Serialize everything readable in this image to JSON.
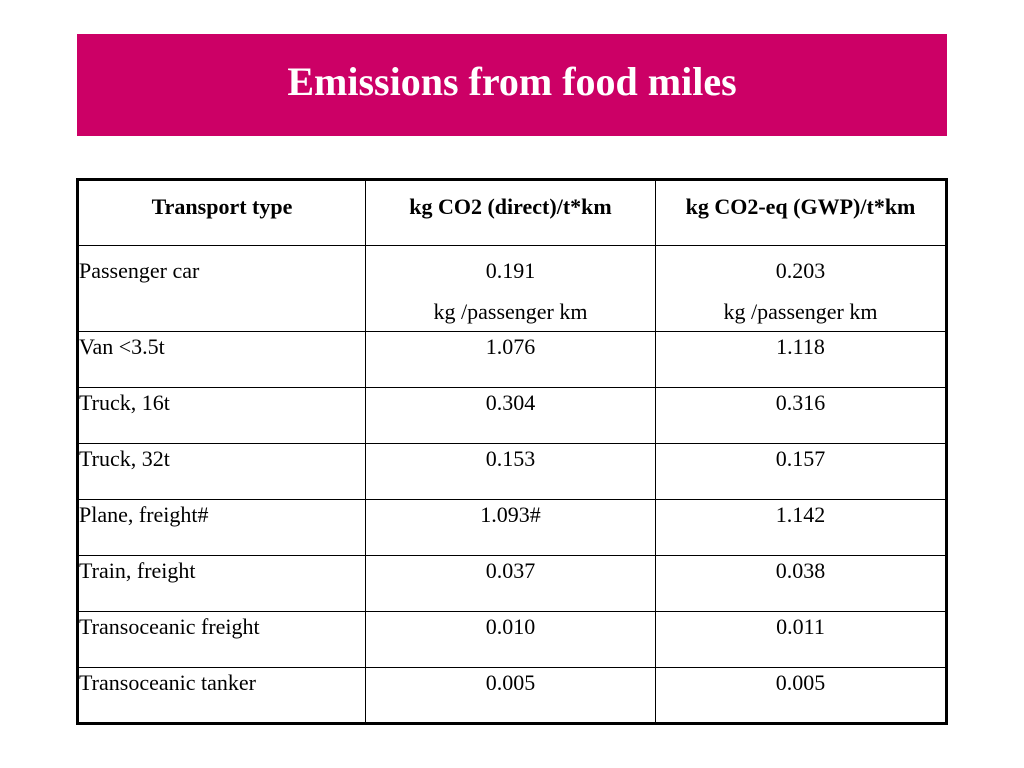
{
  "title": "Emissions from food miles",
  "colors": {
    "title_bar": "#cc0066",
    "title_text": "#ffffff"
  },
  "table": {
    "headers": [
      "Transport type",
      "kg CO2 (direct)/t*km",
      "kg CO2-eq (GWP)/t*km"
    ],
    "rows": [
      {
        "type": "Passenger car",
        "direct": "0.191",
        "direct_unit": "kg /passenger km",
        "gwp": "0.203",
        "gwp_unit": "kg /passenger km"
      },
      {
        "type": "Van <3.5t",
        "direct": "1.076",
        "gwp": "1.118"
      },
      {
        "type": "Truck, 16t",
        "direct": "0.304",
        "gwp": "0.316"
      },
      {
        "type": "Truck, 32t",
        "direct": "0.153",
        "gwp": "0.157"
      },
      {
        "type": "Plane, freight#",
        "direct": "1.093#",
        "gwp": "1.142"
      },
      {
        "type": "Train, freight",
        "direct": "0.037",
        "gwp": "0.038"
      },
      {
        "type": "Transoceanic freight",
        "direct": "0.010",
        "gwp": "0.011"
      },
      {
        "type": "Transoceanic tanker",
        "direct": "0.005",
        "gwp": "0.005"
      }
    ]
  }
}
